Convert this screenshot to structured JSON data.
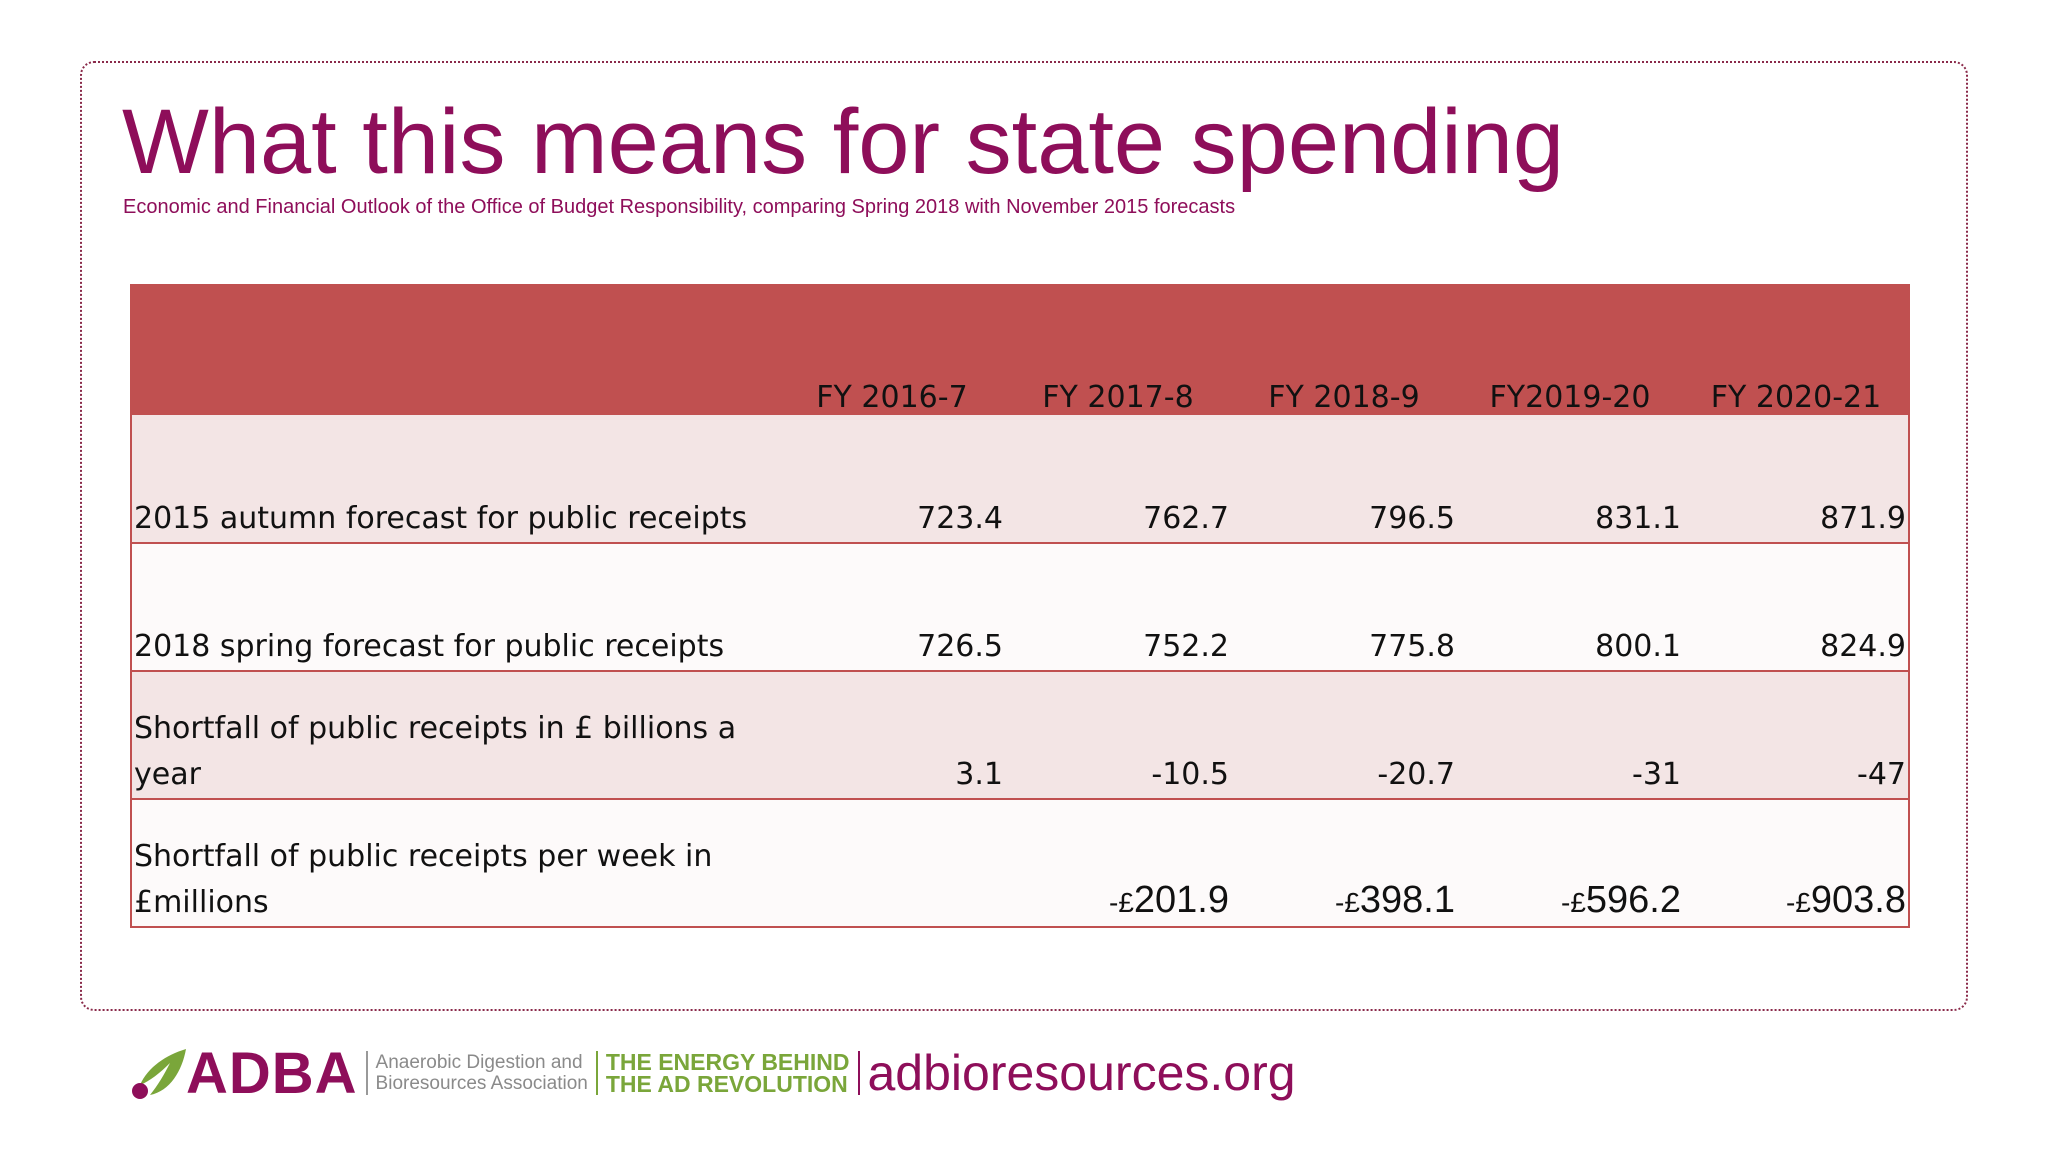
{
  "title": "What this means for state spending",
  "subtitle": "Economic and Financial Outlook of the Office of Budget Responsibility, comparing Spring 2018 with November 2015 forecasts",
  "table": {
    "headers": [
      "",
      "FY 2016-7",
      "FY 2017-8",
      "FY 2018-9",
      "FY2019-20",
      "FY 2020-21"
    ],
    "rows": [
      {
        "label": "2015 autumn forecast for public receipts",
        "values": [
          "723.4",
          "762.7",
          "796.5",
          "831.1",
          "871.9"
        ]
      },
      {
        "label": "2018 spring forecast for public receipts",
        "values": [
          "726.5",
          "752.2",
          "775.8",
          "800.1",
          "824.9"
        ]
      },
      {
        "label": "Shortfall of public receipts in £ billions a year",
        "values": [
          "3.1",
          "-10.5",
          "-20.7",
          "-31",
          "-47"
        ]
      },
      {
        "label": "Shortfall of public receipts per week in £millions",
        "prefix": "-£",
        "values": [
          "",
          "201.9",
          "398.1",
          "596.2",
          "903.8"
        ]
      }
    ]
  },
  "footer": {
    "logo": "ADBA",
    "association": "Anaerobic Digestion and\nBioresources Association",
    "tagline": "THE ENERGY BEHIND\nTHE AD REVOLUTION",
    "website": "adbioresources.org"
  },
  "colors": {
    "brand": "#8e0e5a",
    "header_fill": "#c05050",
    "row_shade": "#f3e5e5",
    "tagline_green": "#7aa63a"
  }
}
